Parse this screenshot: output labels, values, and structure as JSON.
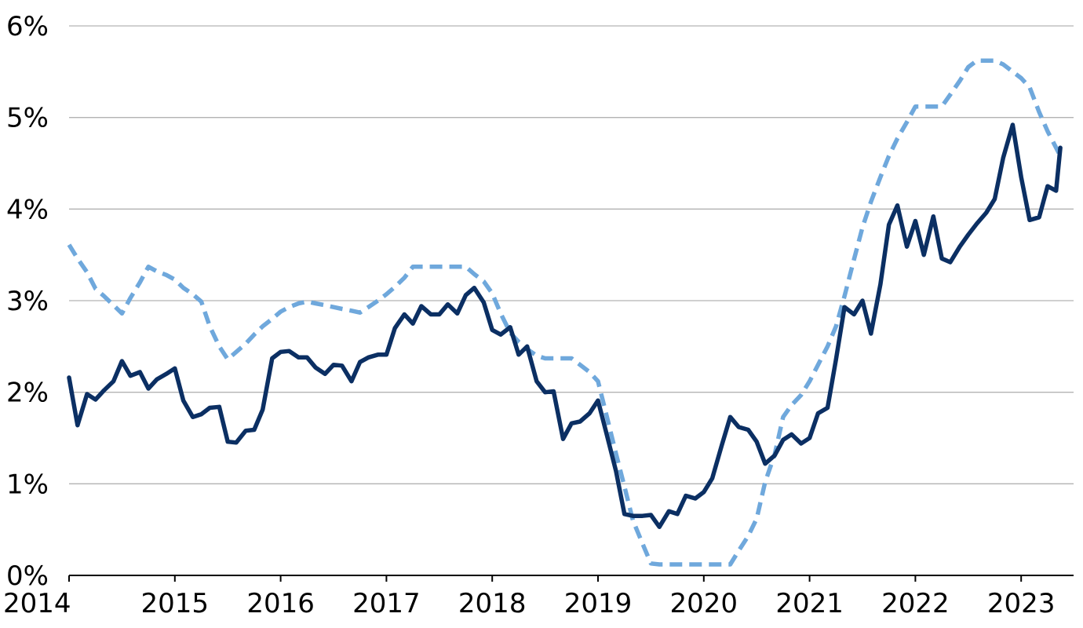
{
  "chart_data": {
    "type": "line",
    "title": "",
    "xlabel": "",
    "ylabel": "",
    "xlim": [
      2014.0,
      2023.5
    ],
    "ylim": [
      0,
      6
    ],
    "grid": true,
    "legend": "none",
    "x_ticks": [
      "2014",
      "2015",
      "2016",
      "2017",
      "2018",
      "2019",
      "2020",
      "2021",
      "2022",
      "2023"
    ],
    "y_ticks": [
      "0%",
      "1%",
      "2%",
      "3%",
      "4%",
      "5%",
      "6%"
    ],
    "series": [
      {
        "style": "solid",
        "color": "#0b2f63",
        "points": [
          [
            2014.0,
            2.16
          ],
          [
            2014.08,
            1.64
          ],
          [
            2014.17,
            1.98
          ],
          [
            2014.25,
            1.92
          ],
          [
            2014.33,
            2.02
          ],
          [
            2014.42,
            2.12
          ],
          [
            2014.5,
            2.34
          ],
          [
            2014.58,
            2.18
          ],
          [
            2014.67,
            2.22
          ],
          [
            2014.75,
            2.04
          ],
          [
            2014.83,
            2.14
          ],
          [
            2014.92,
            2.2
          ],
          [
            2015.0,
            2.26
          ],
          [
            2015.08,
            1.91
          ],
          [
            2015.17,
            1.73
          ],
          [
            2015.25,
            1.76
          ],
          [
            2015.33,
            1.83
          ],
          [
            2015.42,
            1.84
          ],
          [
            2015.5,
            1.46
          ],
          [
            2015.58,
            1.45
          ],
          [
            2015.67,
            1.58
          ],
          [
            2015.75,
            1.59
          ],
          [
            2015.83,
            1.81
          ],
          [
            2015.92,
            2.37
          ],
          [
            2016.0,
            2.44
          ],
          [
            2016.08,
            2.45
          ],
          [
            2016.17,
            2.38
          ],
          [
            2016.25,
            2.38
          ],
          [
            2016.33,
            2.27
          ],
          [
            2016.42,
            2.2
          ],
          [
            2016.5,
            2.3
          ],
          [
            2016.58,
            2.29
          ],
          [
            2016.67,
            2.12
          ],
          [
            2016.75,
            2.33
          ],
          [
            2016.83,
            2.38
          ],
          [
            2016.92,
            2.41
          ],
          [
            2017.0,
            2.41
          ],
          [
            2017.08,
            2.7
          ],
          [
            2017.17,
            2.85
          ],
          [
            2017.25,
            2.75
          ],
          [
            2017.33,
            2.94
          ],
          [
            2017.42,
            2.85
          ],
          [
            2017.5,
            2.85
          ],
          [
            2017.58,
            2.96
          ],
          [
            2017.67,
            2.86
          ],
          [
            2017.75,
            3.06
          ],
          [
            2017.83,
            3.14
          ],
          [
            2017.92,
            2.98
          ],
          [
            2018.0,
            2.68
          ],
          [
            2018.08,
            2.63
          ],
          [
            2018.17,
            2.71
          ],
          [
            2018.25,
            2.41
          ],
          [
            2018.33,
            2.5
          ],
          [
            2018.42,
            2.12
          ],
          [
            2018.5,
            2.0
          ],
          [
            2018.58,
            2.01
          ],
          [
            2018.67,
            1.49
          ],
          [
            2018.75,
            1.66
          ],
          [
            2018.83,
            1.68
          ],
          [
            2018.92,
            1.77
          ],
          [
            2019.0,
            1.91
          ],
          [
            2019.08,
            1.55
          ],
          [
            2019.17,
            1.14
          ],
          [
            2019.25,
            0.67
          ],
          [
            2019.33,
            0.65
          ],
          [
            2019.42,
            0.65
          ],
          [
            2019.5,
            0.66
          ],
          [
            2019.58,
            0.53
          ],
          [
            2019.67,
            0.7
          ],
          [
            2019.75,
            0.67
          ],
          [
            2019.83,
            0.87
          ],
          [
            2019.92,
            0.84
          ],
          [
            2020.0,
            0.91
          ],
          [
            2020.08,
            1.06
          ],
          [
            2020.17,
            1.42
          ],
          [
            2020.25,
            1.73
          ],
          [
            2020.33,
            1.62
          ],
          [
            2020.42,
            1.59
          ],
          [
            2020.5,
            1.46
          ],
          [
            2020.58,
            1.22
          ],
          [
            2020.67,
            1.31
          ],
          [
            2020.75,
            1.48
          ],
          [
            2020.83,
            1.54
          ],
          [
            2020.92,
            1.44
          ],
          [
            2021.0,
            1.5
          ],
          [
            2021.08,
            1.77
          ],
          [
            2021.17,
            1.83
          ],
          [
            2021.25,
            2.36
          ],
          [
            2021.33,
            2.93
          ],
          [
            2021.42,
            2.85
          ],
          [
            2021.5,
            3.0
          ],
          [
            2021.58,
            2.64
          ],
          [
            2021.67,
            3.18
          ],
          [
            2021.75,
            3.83
          ],
          [
            2021.83,
            4.04
          ],
          [
            2021.92,
            3.59
          ],
          [
            2022.0,
            3.87
          ],
          [
            2022.08,
            3.5
          ],
          [
            2022.17,
            3.92
          ],
          [
            2022.25,
            3.46
          ],
          [
            2022.33,
            3.42
          ],
          [
            2022.42,
            3.59
          ],
          [
            2022.5,
            3.72
          ],
          [
            2022.58,
            3.84
          ],
          [
            2022.67,
            3.96
          ],
          [
            2022.75,
            4.11
          ],
          [
            2022.83,
            4.56
          ],
          [
            2022.92,
            4.92
          ],
          [
            2023.0,
            4.35
          ],
          [
            2023.08,
            3.88
          ],
          [
            2023.17,
            3.91
          ],
          [
            2023.25,
            4.25
          ],
          [
            2023.33,
            4.2
          ],
          [
            2023.37,
            4.67
          ]
        ]
      },
      {
        "style": "dashed",
        "color": "#6fa8dc",
        "points": [
          [
            2014.0,
            3.61
          ],
          [
            2014.08,
            3.46
          ],
          [
            2014.17,
            3.31
          ],
          [
            2014.25,
            3.13
          ],
          [
            2014.33,
            3.05
          ],
          [
            2014.42,
            2.95
          ],
          [
            2014.5,
            2.86
          ],
          [
            2014.58,
            3.03
          ],
          [
            2014.67,
            3.2
          ],
          [
            2014.75,
            3.37
          ],
          [
            2014.83,
            3.32
          ],
          [
            2014.92,
            3.28
          ],
          [
            2015.0,
            3.23
          ],
          [
            2015.08,
            3.14
          ],
          [
            2015.17,
            3.07
          ],
          [
            2015.25,
            2.99
          ],
          [
            2015.33,
            2.72
          ],
          [
            2015.42,
            2.5
          ],
          [
            2015.5,
            2.36
          ],
          [
            2015.58,
            2.44
          ],
          [
            2015.67,
            2.53
          ],
          [
            2015.75,
            2.63
          ],
          [
            2015.83,
            2.72
          ],
          [
            2015.92,
            2.8
          ],
          [
            2016.0,
            2.88
          ],
          [
            2016.08,
            2.93
          ],
          [
            2016.17,
            2.97
          ],
          [
            2016.25,
            2.99
          ],
          [
            2016.33,
            2.97
          ],
          [
            2016.42,
            2.95
          ],
          [
            2016.5,
            2.93
          ],
          [
            2016.58,
            2.91
          ],
          [
            2016.67,
            2.89
          ],
          [
            2016.75,
            2.87
          ],
          [
            2016.83,
            2.93
          ],
          [
            2016.92,
            3.0
          ],
          [
            2017.0,
            3.07
          ],
          [
            2017.08,
            3.15
          ],
          [
            2017.17,
            3.25
          ],
          [
            2017.25,
            3.37
          ],
          [
            2017.33,
            3.37
          ],
          [
            2017.42,
            3.37
          ],
          [
            2017.5,
            3.37
          ],
          [
            2017.58,
            3.37
          ],
          [
            2017.67,
            3.37
          ],
          [
            2017.75,
            3.37
          ],
          [
            2017.83,
            3.29
          ],
          [
            2017.92,
            3.21
          ],
          [
            2018.0,
            3.08
          ],
          [
            2018.08,
            2.86
          ],
          [
            2018.17,
            2.65
          ],
          [
            2018.25,
            2.55
          ],
          [
            2018.33,
            2.47
          ],
          [
            2018.42,
            2.4
          ],
          [
            2018.5,
            2.37
          ],
          [
            2018.58,
            2.37
          ],
          [
            2018.67,
            2.37
          ],
          [
            2018.75,
            2.37
          ],
          [
            2018.83,
            2.3
          ],
          [
            2018.92,
            2.22
          ],
          [
            2019.0,
            2.12
          ],
          [
            2019.08,
            1.75
          ],
          [
            2019.17,
            1.33
          ],
          [
            2019.25,
            0.97
          ],
          [
            2019.33,
            0.6
          ],
          [
            2019.42,
            0.35
          ],
          [
            2019.5,
            0.13
          ],
          [
            2019.58,
            0.12
          ],
          [
            2019.67,
            0.12
          ],
          [
            2019.75,
            0.12
          ],
          [
            2019.83,
            0.12
          ],
          [
            2019.92,
            0.12
          ],
          [
            2020.0,
            0.12
          ],
          [
            2020.08,
            0.12
          ],
          [
            2020.17,
            0.12
          ],
          [
            2020.25,
            0.12
          ],
          [
            2020.33,
            0.27
          ],
          [
            2020.42,
            0.43
          ],
          [
            2020.5,
            0.62
          ],
          [
            2020.58,
            1.02
          ],
          [
            2020.67,
            1.32
          ],
          [
            2020.75,
            1.73
          ],
          [
            2020.83,
            1.86
          ],
          [
            2020.92,
            1.97
          ],
          [
            2021.0,
            2.12
          ],
          [
            2021.08,
            2.3
          ],
          [
            2021.17,
            2.5
          ],
          [
            2021.25,
            2.72
          ],
          [
            2021.33,
            3.05
          ],
          [
            2021.42,
            3.45
          ],
          [
            2021.5,
            3.8
          ],
          [
            2021.58,
            4.08
          ],
          [
            2021.67,
            4.35
          ],
          [
            2021.75,
            4.58
          ],
          [
            2021.83,
            4.77
          ],
          [
            2021.92,
            4.95
          ],
          [
            2022.0,
            5.12
          ],
          [
            2022.08,
            5.12
          ],
          [
            2022.17,
            5.12
          ],
          [
            2022.25,
            5.12
          ],
          [
            2022.33,
            5.25
          ],
          [
            2022.42,
            5.4
          ],
          [
            2022.5,
            5.55
          ],
          [
            2022.58,
            5.62
          ],
          [
            2022.67,
            5.62
          ],
          [
            2022.75,
            5.62
          ],
          [
            2022.83,
            5.58
          ],
          [
            2022.92,
            5.5
          ],
          [
            2023.0,
            5.43
          ],
          [
            2023.08,
            5.33
          ],
          [
            2023.17,
            5.06
          ],
          [
            2023.25,
            4.85
          ],
          [
            2023.37,
            4.58
          ]
        ]
      }
    ]
  }
}
